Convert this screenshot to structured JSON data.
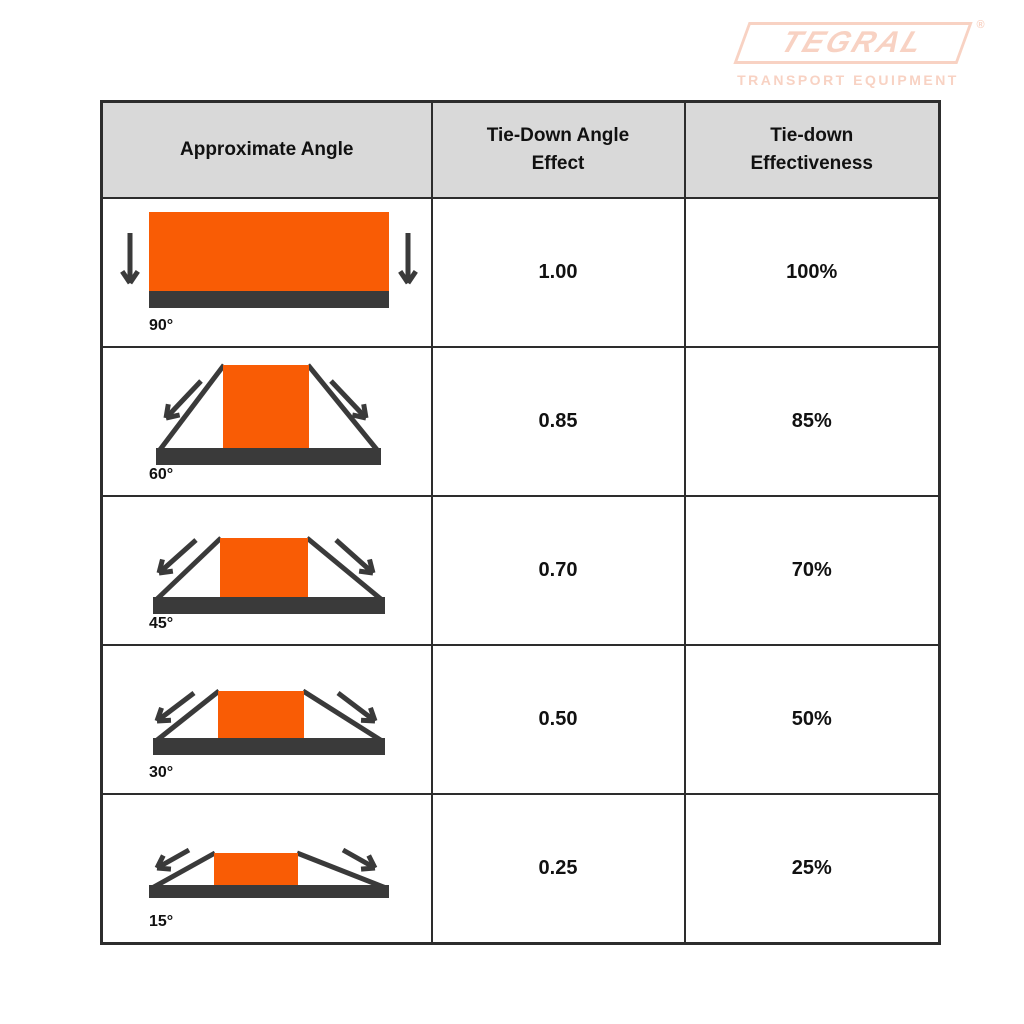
{
  "logo": {
    "brand": "TEGRAL",
    "registered": "®",
    "tagline": "TRANSPORT EQUIPMENT"
  },
  "table": {
    "headers": [
      "Approximate Angle",
      "Tie-Down Angle Effect",
      "Tie-down Effectiveness"
    ],
    "rows": [
      {
        "angle_label": "90°",
        "angle_degrees": 90,
        "effect": "1.00",
        "effectiveness": "100%"
      },
      {
        "angle_label": "60°",
        "angle_degrees": 60,
        "effect": "0.85",
        "effectiveness": "85%"
      },
      {
        "angle_label": "45°",
        "angle_degrees": 45,
        "effect": "0.70",
        "effectiveness": "70%"
      },
      {
        "angle_label": "30°",
        "angle_degrees": 30,
        "effect": "0.50",
        "effectiveness": "50%"
      },
      {
        "angle_label": "15°",
        "angle_degrees": 15,
        "effect": "0.25",
        "effectiveness": "25%"
      }
    ]
  },
  "colors": {
    "accent_orange": "#F95C05",
    "bar_dark": "#3A3A3A",
    "arrow_dark": "#3A3A3A",
    "table_border": "#2D2D2D",
    "header_bg": "#D9D9D9",
    "logo_peach": "#F8D2C3",
    "page_bg": "#FFFFFF"
  }
}
